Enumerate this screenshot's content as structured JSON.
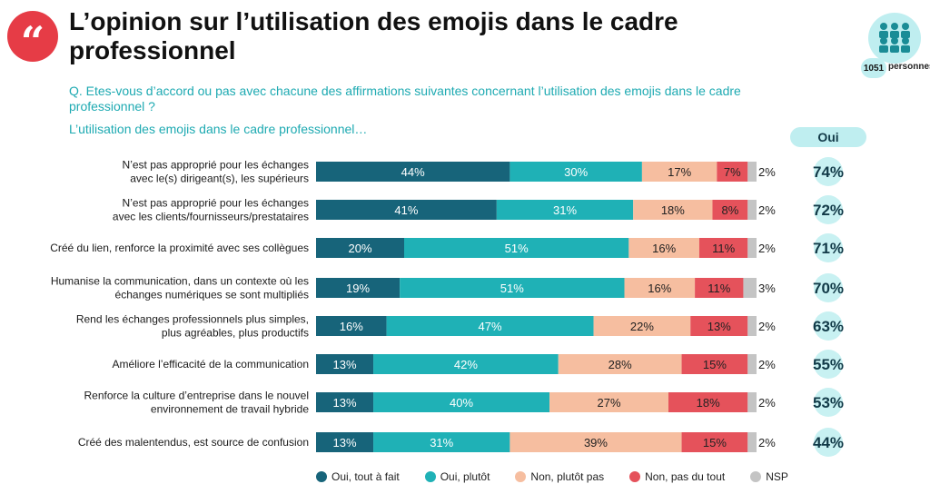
{
  "header": {
    "title": "L’opinion sur l’utilisation des emojis dans le cadre professionnel",
    "quote_glyph": "“",
    "sample_count": "1051",
    "sample_unit": "personnes",
    "question": "Q. Etes-vous d’accord ou pas avec chacune des affirmations suivantes concernant l’utilisation des emojis dans le cadre professionnel ?",
    "subtitle": "L’utilisation des emojis dans le cadre professionnel…",
    "oui_header": "Oui"
  },
  "chart_data": {
    "type": "bar",
    "orientation": "horizontal",
    "stacked": true,
    "categories": [
      "N’est pas approprié pour les échanges\navec le(s) dirigeant(s), les supérieurs",
      "N’est pas approprié pour les échanges\navec les clients/fournisseurs/prestataires",
      "Créé du lien, renforce la proximité avec ses collègues",
      "Humanise la communication, dans un contexte où les\néchanges numériques se sont multipliés",
      "Rend les échanges professionnels plus simples,\nplus agréables, plus productifs",
      "Améliore l’efficacité de la communication",
      "Renforce la culture d’entreprise dans le nouvel\nenvironnement de travail hybride",
      "Créé des malentendus, est source de confusion"
    ],
    "series": [
      {
        "name": "Oui, tout à fait",
        "color": "#17647a",
        "values": [
          44,
          41,
          20,
          19,
          16,
          13,
          13,
          13
        ]
      },
      {
        "name": "Oui, plutôt",
        "color": "#1fb1b6",
        "values": [
          30,
          31,
          51,
          51,
          47,
          42,
          40,
          31
        ]
      },
      {
        "name": "Non, plutôt pas",
        "color": "#f6bea0",
        "values": [
          17,
          18,
          16,
          16,
          22,
          28,
          27,
          39
        ]
      },
      {
        "name": "Non, pas du tout",
        "color": "#e5525b",
        "values": [
          7,
          8,
          11,
          11,
          13,
          15,
          18,
          15
        ]
      },
      {
        "name": "NSP",
        "color": "#c4c4c4",
        "values": [
          2,
          2,
          2,
          3,
          2,
          2,
          2,
          2
        ]
      }
    ],
    "totals_oui": [
      "74%",
      "72%",
      "71%",
      "70%",
      "63%",
      "55%",
      "53%",
      "44%"
    ],
    "value_suffix": "%",
    "legend_position": "bottom"
  }
}
